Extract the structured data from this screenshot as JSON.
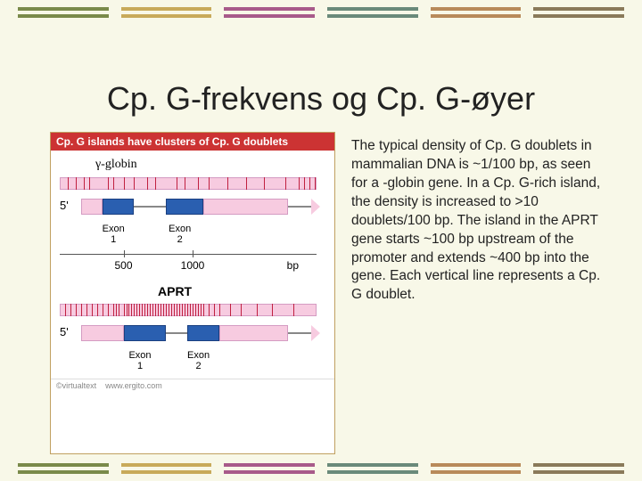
{
  "decor": {
    "colors": [
      "#7a8a4a",
      "#c8aa5a",
      "#a85a8a",
      "#6a8a7a",
      "#b88a5a",
      "#8a7a5a"
    ]
  },
  "title": "Cp. G-frekvens og Cp. G-øyer",
  "figure": {
    "header": "Cp. G islands have clusters of Cp. G doublets",
    "gamma_globin": {
      "label": "γ-globin",
      "cpg_positions_pct": [
        3,
        6,
        9,
        11,
        18,
        20,
        24,
        28,
        33,
        36,
        44,
        47,
        52,
        56,
        63,
        70,
        77,
        85,
        90,
        92,
        94,
        96
      ]
    },
    "gamma_map": {
      "five_prime": "5'",
      "utr_left_pct": [
        8,
        16
      ],
      "exon1_pct": [
        16,
        28
      ],
      "exon2_pct": [
        40,
        54
      ],
      "utr_right_pct": [
        54,
        86
      ],
      "exon_labels": {
        "e1": "Exon\n1",
        "e2": "Exon\n2"
      }
    },
    "scale": {
      "ticks": [
        {
          "pos_pct": 24,
          "label": "500"
        },
        {
          "pos_pct": 50,
          "label": "1000"
        }
      ],
      "bp_label": "bp"
    },
    "aprt": {
      "label": "APRT",
      "cpg_positions_pct": [
        2,
        4,
        6,
        8,
        10,
        12,
        14,
        16,
        18,
        20,
        21,
        22,
        24,
        25,
        26,
        27,
        28,
        29,
        30,
        31,
        32,
        33,
        34,
        35,
        36,
        37,
        38,
        39,
        40,
        41,
        42,
        43,
        44,
        45,
        46,
        47,
        48,
        49,
        50,
        51,
        52,
        53,
        54,
        56,
        58,
        60,
        64,
        68,
        74,
        80,
        88
      ]
    },
    "aprt_map": {
      "five_prime": "5'",
      "utr_left_pct": [
        8,
        24
      ],
      "exon1_pct": [
        24,
        40
      ],
      "exon2_pct": [
        48,
        60
      ],
      "utr_right_pct": [
        60,
        86
      ],
      "exon_labels": {
        "e1": "Exon\n1",
        "e2": "Exon\n2"
      }
    },
    "credit_left": "©virtualtext",
    "credit_right": "www.ergito.com"
  },
  "description": "The typical density of Cp. G doublets in mammalian DNA is ~1/100 bp, as seen for a -globin gene. In a Cp. G-rich island, the density is increased to >10 doublets/100 bp. The island in the APRT gene starts ~100 bp upstream of the promoter and extends ~400 bp into the gene. Each vertical line represents a Cp. G doublet."
}
